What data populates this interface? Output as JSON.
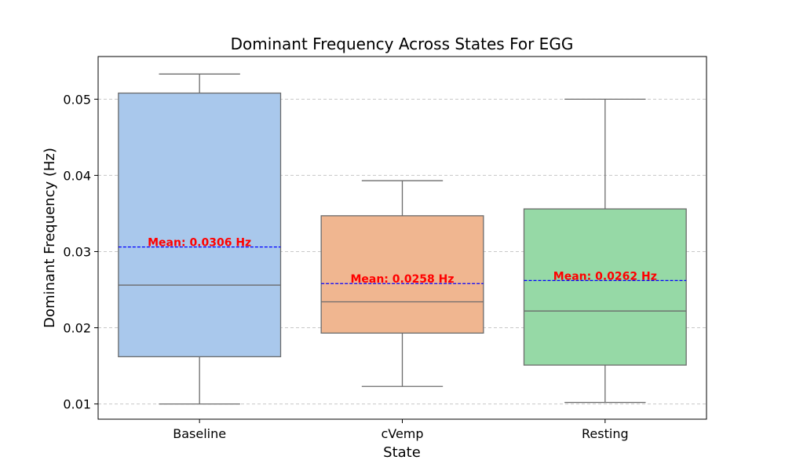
{
  "chart_data": {
    "type": "box",
    "title": "Dominant Frequency Across States For EGG",
    "xlabel": "State",
    "ylabel": "Dominant Frequency (Hz)",
    "ylim": [
      0.008,
      0.0556
    ],
    "yticks": [
      "0.01",
      "0.02",
      "0.03",
      "0.04",
      "0.05"
    ],
    "ytick_values": [
      0.01,
      0.02,
      0.03,
      0.04,
      0.05
    ],
    "grid": "horizontal dashed",
    "categories": [
      "Baseline",
      "cVemp",
      "Resting"
    ],
    "boxes": [
      {
        "category": "Baseline",
        "whisker_low": 0.01,
        "q1": 0.0162,
        "median": 0.0256,
        "q3": 0.0508,
        "whisker_high": 0.0533,
        "mean": 0.0306,
        "mean_label": "Mean: 0.0306 Hz",
        "color": "#a9c8ec"
      },
      {
        "category": "cVemp",
        "whisker_low": 0.0123,
        "q1": 0.0193,
        "median": 0.0234,
        "q3": 0.0347,
        "whisker_high": 0.0393,
        "mean": 0.0258,
        "mean_label": "Mean: 0.0258 Hz",
        "color": "#f0b690"
      },
      {
        "category": "Resting",
        "whisker_low": 0.0102,
        "q1": 0.0151,
        "median": 0.0222,
        "q3": 0.0356,
        "whisker_high": 0.05,
        "mean": 0.0262,
        "mean_label": "Mean: 0.0262 Hz",
        "color": "#96d9a6"
      }
    ],
    "colors": {
      "box_edge": "#6b6b6b",
      "mean_line": "#0000ff",
      "mean_text": "#ff0000",
      "grid": "#c8c8c8"
    }
  }
}
